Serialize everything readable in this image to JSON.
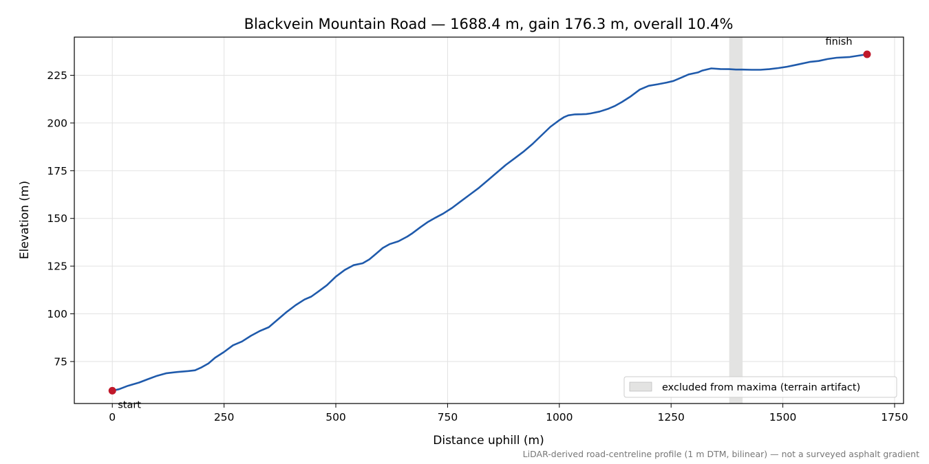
{
  "chart_data": {
    "type": "line",
    "title": "Blackvein Mountain Road — 1688.4 m, gain 176.3 m, overall 10.4%",
    "xlabel": "Distance uphill (m)",
    "ylabel": "Elevation (m)",
    "xlim": [
      -85,
      1770
    ],
    "ylim": [
      53,
      245
    ],
    "x_ticks": [
      0,
      250,
      500,
      750,
      1000,
      1250,
      1500,
      1750
    ],
    "y_ticks": [
      75,
      100,
      125,
      150,
      175,
      200,
      225
    ],
    "grid": true,
    "series": [
      {
        "color": "#1f5aab",
        "x": [
          0,
          15,
          35,
          60,
          80,
          100,
          120,
          145,
          170,
          185,
          200,
          215,
          230,
          250,
          270,
          290,
          310,
          330,
          350,
          370,
          390,
          410,
          430,
          445,
          460,
          480,
          500,
          520,
          540,
          560,
          575,
          590,
          605,
          620,
          640,
          660,
          670,
          690,
          705,
          720,
          740,
          760,
          780,
          800,
          820,
          840,
          860,
          880,
          900,
          920,
          940,
          960,
          980,
          1000,
          1010,
          1020,
          1035,
          1050,
          1060,
          1070,
          1090,
          1110,
          1125,
          1140,
          1160,
          1180,
          1200,
          1220,
          1240,
          1255,
          1270,
          1290,
          1310,
          1320,
          1340,
          1360,
          1380,
          1395,
          1410,
          1430,
          1450,
          1470,
          1490,
          1510,
          1530,
          1560,
          1580,
          1600,
          1620,
          1650,
          1688.4
        ],
        "y": [
          59.7,
          60.5,
          62.3,
          64.0,
          65.8,
          67.5,
          68.8,
          69.5,
          70.0,
          70.4,
          72.0,
          74.0,
          77.0,
          80.0,
          83.5,
          85.5,
          88.5,
          91.0,
          93.0,
          97.0,
          101.0,
          104.5,
          107.5,
          109.0,
          111.5,
          115.0,
          119.5,
          123.0,
          125.5,
          126.5,
          128.5,
          131.5,
          134.5,
          136.5,
          138.0,
          140.5,
          142.0,
          145.5,
          148.0,
          150.0,
          152.5,
          155.5,
          159.0,
          162.5,
          166.0,
          170.0,
          174.0,
          178.0,
          181.5,
          185.0,
          189.0,
          193.5,
          198.0,
          201.5,
          203.0,
          204.0,
          204.5,
          204.6,
          204.7,
          205.0,
          206.0,
          207.5,
          209.0,
          211.0,
          214.0,
          217.5,
          219.5,
          220.3,
          221.2,
          222.0,
          223.5,
          225.5,
          226.5,
          227.5,
          228.6,
          228.3,
          228.2,
          228.0,
          228.0,
          227.9,
          227.9,
          228.2,
          228.8,
          229.5,
          230.5,
          232.0,
          232.5,
          233.5,
          234.2,
          234.6,
          236.0
        ]
      }
    ],
    "points": [
      {
        "label": "start",
        "x": 0,
        "y": 59.7,
        "color": "#c0182a"
      },
      {
        "label": "finish",
        "x": 1688.4,
        "y": 236.0,
        "color": "#c0182a"
      }
    ],
    "excluded_band": {
      "x0": 1380,
      "x1": 1410,
      "color": "#e3e3e2"
    },
    "legend": {
      "position": "bottom-right",
      "label": "excluded from maxima (terrain artifact)"
    },
    "footnote": "LiDAR-derived road-centreline profile (1 m DTM, bilinear) — not a surveyed asphalt gradient"
  }
}
